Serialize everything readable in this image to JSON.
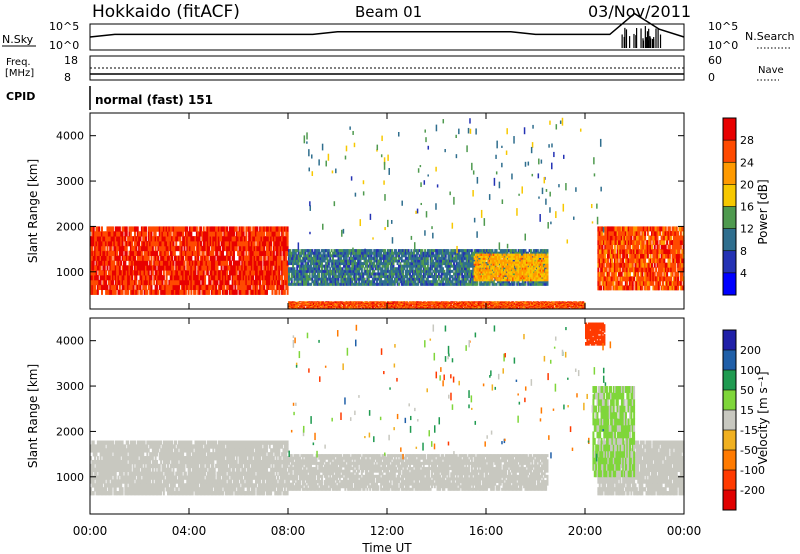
{
  "header": {
    "title": "Hokkaido (fitACF)",
    "beam": "Beam 01",
    "date": "03/Nov/2011"
  },
  "top_panels": {
    "nsky_label": "N.Sky",
    "nsearch_label": "N.Search",
    "noise_ticks_left": [
      "10^5",
      "10^0"
    ],
    "noise_ticks_right": [
      "10^5",
      "10^0"
    ],
    "freq_label_line1": "Freq.",
    "freq_label_line2": "[MHz]",
    "freq_ticks": [
      "18",
      "8"
    ],
    "nave_label": "Nave",
    "nave_ticks": [
      "60",
      "0"
    ],
    "cpid_label": "CPID",
    "cpid_text": "normal (fast) 151"
  },
  "panels": {
    "y_label": "Slant Range [km]",
    "y_ticks": [
      "4000",
      "3000",
      "2000",
      "1000"
    ],
    "x_ticks": [
      "00:00",
      "04:00",
      "08:00",
      "12:00",
      "16:00",
      "20:00",
      "00:00"
    ],
    "x_label": "Time UT"
  },
  "colorbars": {
    "power": {
      "label": "Power [dB]",
      "ticks": [
        "28",
        "24",
        "20",
        "16",
        "12",
        "8",
        "4"
      ],
      "colors": [
        "#e80000",
        "#ff4a00",
        "#ff9a00",
        "#f7c800",
        "#4f9a4f",
        "#2f6e8e",
        "#2432b4",
        "#0000ff"
      ]
    },
    "velocity": {
      "label": "Velocity [m s⁻¹]",
      "ticks": [
        "200",
        "100",
        "50",
        "15",
        "-15",
        "-50",
        "-100",
        "-200"
      ],
      "colors": [
        "#2020a8",
        "#1f5fa8",
        "#1f9a50",
        "#7fd63a",
        "#c8c8c0",
        "#f0b020",
        "#ff7a00",
        "#ff3a00",
        "#e00000"
      ]
    }
  },
  "chart_data": [
    {
      "type": "line",
      "title": "Hokkaido (fitACF)",
      "series": [
        {
          "name": "N.Sky",
          "x": [
            0,
            1,
            2,
            3,
            4,
            5,
            6,
            7,
            8,
            9,
            10,
            11,
            12,
            13,
            14,
            15,
            16,
            17,
            18,
            19,
            20,
            21,
            22,
            23,
            24
          ],
          "values": [
            2.5,
            3,
            3,
            3,
            3,
            3,
            3,
            3,
            3,
            3,
            3.5,
            3.5,
            3.5,
            3.5,
            3.5,
            3.5,
            3.5,
            3.5,
            3,
            3,
            3,
            3,
            7,
            4,
            2.5
          ]
        }
      ],
      "xlim": [
        0,
        24
      ],
      "ylim": [
        0,
        5
      ]
    },
    {
      "type": "line",
      "series": [
        {
          "name": "Freq.",
          "x": [
            0,
            24
          ],
          "values": [
            10,
            10
          ]
        }
      ],
      "xlim": [
        0,
        24
      ],
      "ylim": [
        8,
        18
      ]
    },
    {
      "type": "heatmap",
      "xlabel": "Time UT",
      "ylabel": "Slant Range [km]",
      "xlim": [
        0,
        24
      ],
      "ylim": [
        180,
        4500
      ],
      "x_ticks": [
        "00:00",
        "04:00",
        "08:00",
        "12:00",
        "16:00",
        "20:00",
        "00:00"
      ],
      "y_ticks": [
        1000,
        2000,
        3000,
        4000
      ],
      "colorbar_label": "Power [dB]",
      "colorbar_range": [
        0,
        30
      ],
      "regions": [
        {
          "t0": 0,
          "t1": 8,
          "r0": 500,
          "r1": 2000,
          "value": 28
        },
        {
          "t0": 8,
          "t1": 18.5,
          "r0": 700,
          "r1": 1500,
          "value": 9
        },
        {
          "t0": 15.5,
          "t1": 18.5,
          "r0": 800,
          "r1": 1400,
          "value": 20
        },
        {
          "t0": 20.5,
          "t1": 24,
          "r0": 600,
          "r1": 2000,
          "value": 26
        },
        {
          "t0": 8,
          "t1": 20,
          "r0": 180,
          "r1": 350,
          "value": 26
        }
      ]
    },
    {
      "type": "heatmap",
      "xlabel": "Time UT",
      "ylabel": "Slant Range [km]",
      "xlim": [
        0,
        24
      ],
      "ylim": [
        180,
        4500
      ],
      "x_ticks": [
        "00:00",
        "04:00",
        "08:00",
        "12:00",
        "16:00",
        "20:00",
        "00:00"
      ],
      "y_ticks": [
        1000,
        2000,
        3000,
        4000
      ],
      "colorbar_label": "Velocity [m s⁻¹]",
      "colorbar_range": [
        -200,
        200
      ],
      "regions": [
        {
          "t0": 0,
          "t1": 8,
          "r0": 600,
          "r1": 1800,
          "value": 0
        },
        {
          "t0": 8,
          "t1": 18.5,
          "r0": 700,
          "r1": 1500,
          "value": 0
        },
        {
          "t0": 20.5,
          "t1": 24,
          "r0": 600,
          "r1": 1800,
          "value": 0
        },
        {
          "t0": 20.3,
          "t1": 22,
          "r0": 1000,
          "r1": 3000,
          "value": 30
        },
        {
          "t0": 20,
          "t1": 20.8,
          "r0": 3900,
          "r1": 4400,
          "value": -150
        }
      ]
    }
  ]
}
